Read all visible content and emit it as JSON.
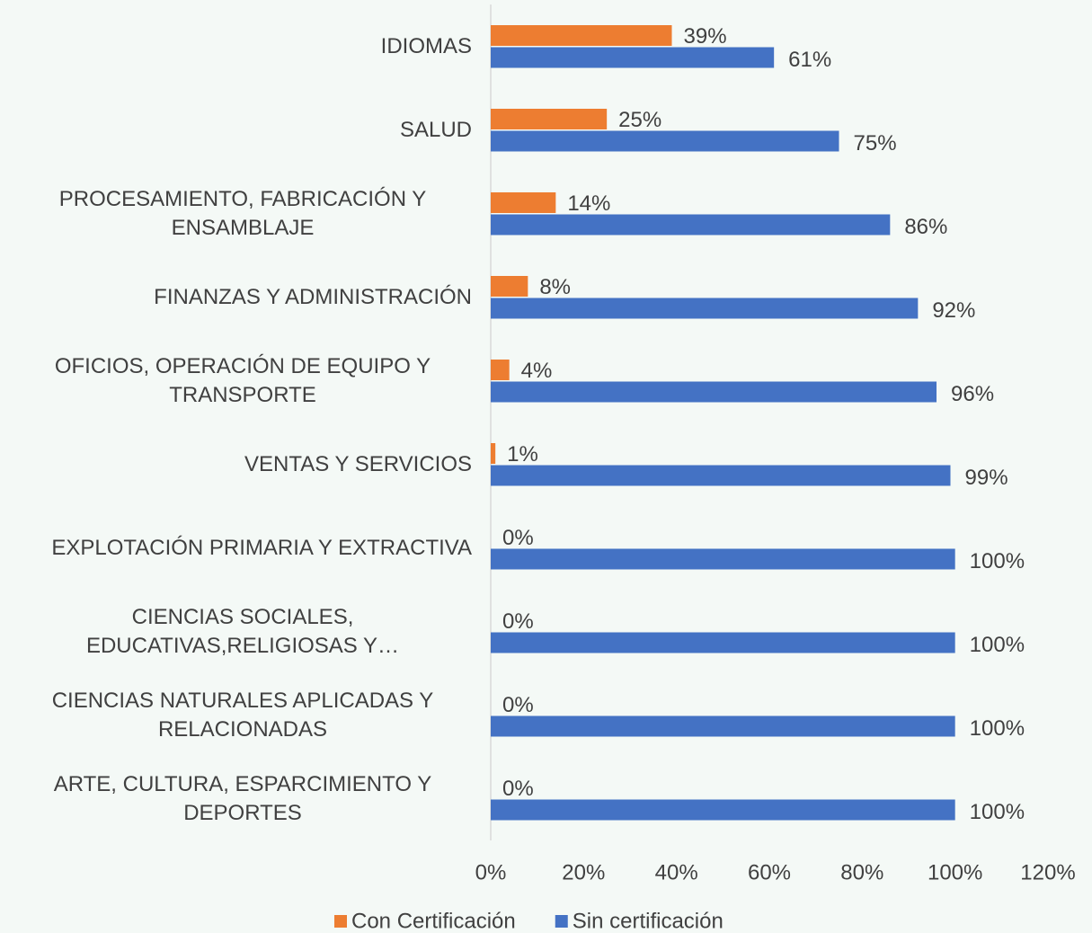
{
  "chart_data": {
    "type": "hbar",
    "categories": [
      "IDIOMAS",
      "SALUD",
      "PROCESAMIENTO, FABRICACIÓN Y ENSAMBLAJE",
      "FINANZAS Y ADMINISTRACIÓN",
      "OFICIOS, OPERACIÓN DE EQUIPO Y TRANSPORTE",
      "VENTAS Y SERVICIOS",
      "EXPLOTACIÓN PRIMARIA Y EXTRACTIVA",
      "CIENCIAS SOCIALES, EDUCATIVAS,RELIGIOSAS Y…",
      "CIENCIAS NATURALES APLICADAS Y RELACIONADAS",
      "ARTE, CULTURA, ESPARCIMIENTO Y DEPORTES"
    ],
    "series": [
      {
        "name": "Con Certificación",
        "color": "#ed7d31",
        "values": [
          39,
          25,
          14,
          8,
          4,
          1,
          0,
          0,
          0,
          0
        ],
        "value_labels": [
          "39%",
          "25%",
          "14%",
          "8%",
          "4%",
          "1%",
          "0%",
          "0%",
          "0%",
          "0%"
        ]
      },
      {
        "name": "Sin certificación",
        "color": "#4472c4",
        "values": [
          61,
          75,
          86,
          92,
          96,
          99,
          100,
          100,
          100,
          100
        ],
        "value_labels": [
          "61%",
          "75%",
          "86%",
          "92%",
          "96%",
          "99%",
          "100%",
          "100%",
          "100%",
          "100%"
        ]
      }
    ],
    "xlim": [
      0,
      120
    ],
    "xticks": [
      {
        "value": 0,
        "label": "0%"
      },
      {
        "value": 20,
        "label": "20%"
      },
      {
        "value": 40,
        "label": "40%"
      },
      {
        "value": 60,
        "label": "60%"
      },
      {
        "value": 80,
        "label": "80%"
      },
      {
        "value": 100,
        "label": "100%"
      },
      {
        "value": 120,
        "label": "120%"
      }
    ],
    "legend": "bottom"
  }
}
